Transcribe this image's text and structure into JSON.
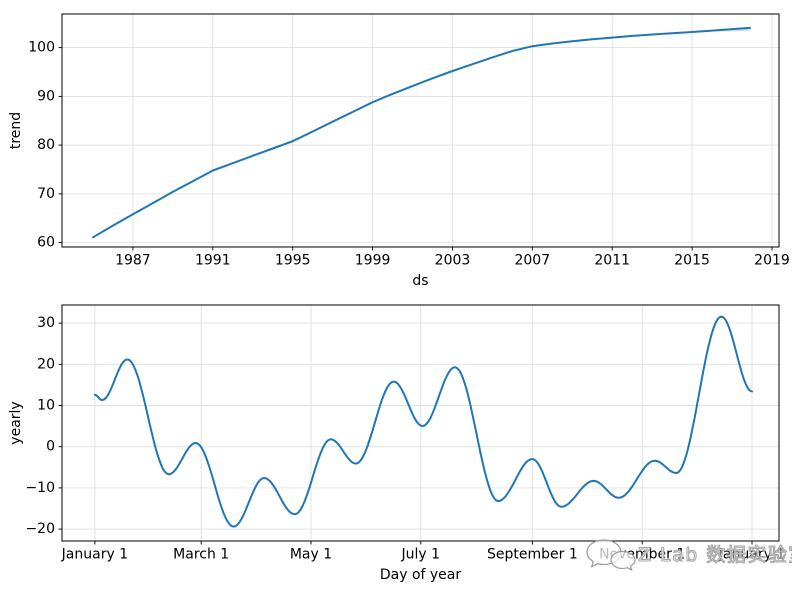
{
  "figure": {
    "background": "#ffffff",
    "watermark": {
      "text": "Z Lab 数据实验室",
      "icon": "chat-bubbles-icon"
    }
  },
  "chart_data": [
    {
      "type": "line",
      "title": "",
      "xlabel": "ds",
      "ylabel": "trend",
      "grid": true,
      "grid_color": "#e0e0e0",
      "legend": "none",
      "line_color": "#1f77b4",
      "line_width": 2,
      "smooth": false,
      "xlim": [
        1983.45,
        2019.35
      ],
      "ylim": [
        59.1,
        106.9
      ],
      "xticks": {
        "values": [
          1987,
          1991,
          1995,
          1999,
          2003,
          2007,
          2011,
          2015,
          2019
        ],
        "labels": [
          "1987",
          "1991",
          "1995",
          "1999",
          "2003",
          "2007",
          "2011",
          "2015",
          "2019"
        ]
      },
      "yticks": {
        "values": [
          60,
          70,
          80,
          90,
          100
        ],
        "labels": [
          "60",
          "70",
          "80",
          "90",
          "100"
        ]
      },
      "uncertainty_band": {
        "color": "rgba(31,119,180,0.22)",
        "points": [
          [
            2015.5,
            103.3
          ],
          [
            2017.9,
            104.3
          ],
          [
            2017.9,
            103.35
          ]
        ]
      },
      "series": [
        {
          "name": "trend",
          "points": [
            [
              1985.0,
              61.1
            ],
            [
              1986,
              63.5
            ],
            [
              1987,
              65.8
            ],
            [
              1988,
              68.1
            ],
            [
              1989,
              70.4
            ],
            [
              1990,
              72.6
            ],
            [
              1991,
              74.8
            ],
            [
              1992,
              76.3
            ],
            [
              1993,
              77.8
            ],
            [
              1994,
              79.3
            ],
            [
              1995,
              80.8
            ],
            [
              1996,
              82.8
            ],
            [
              1997,
              84.8
            ],
            [
              1998,
              86.8
            ],
            [
              1999,
              88.8
            ],
            [
              2000,
              90.5
            ],
            [
              2001,
              92.1
            ],
            [
              2002,
              93.7
            ],
            [
              2003,
              95.2
            ],
            [
              2004,
              96.6
            ],
            [
              2005,
              98.0
            ],
            [
              2006,
              99.3
            ],
            [
              2007,
              100.3
            ],
            [
              2008,
              100.85
            ],
            [
              2009,
              101.3
            ],
            [
              2010,
              101.7
            ],
            [
              2011,
              102.05
            ],
            [
              2012,
              102.4
            ],
            [
              2013,
              102.7
            ],
            [
              2014,
              102.95
            ],
            [
              2015,
              103.2
            ],
            [
              2016,
              103.5
            ],
            [
              2017,
              103.8
            ],
            [
              2017.9,
              104.05
            ]
          ]
        }
      ]
    },
    {
      "type": "line",
      "title": "",
      "xlabel": "Day of year",
      "ylabel": "yearly",
      "grid": true,
      "grid_color": "#e0e0e0",
      "legend": "none",
      "line_color": "#1f77b4",
      "line_width": 2,
      "smooth": true,
      "xlim": [
        -18.3,
        380.0
      ],
      "ylim": [
        -22.9,
        34.4
      ],
      "xticks": {
        "values": [
          0,
          59,
          120,
          181,
          243,
          304,
          365
        ],
        "labels": [
          "January 1",
          "March 1",
          "May 1",
          "July 1",
          "September 1",
          "November 1",
          "January 1"
        ]
      },
      "yticks": {
        "values": [
          -20,
          -10,
          0,
          10,
          20,
          30
        ],
        "labels": [
          "−20",
          "−10",
          "0",
          "10",
          "20",
          "30"
        ]
      },
      "series": [
        {
          "name": "yearly",
          "points": [
            [
              0,
              12.6
            ],
            [
              4,
              11.3
            ],
            [
              18,
              21.2
            ],
            [
              41,
              -6.7
            ],
            [
              56,
              0.9
            ],
            [
              77,
              -19.4
            ],
            [
              94,
              -7.6
            ],
            [
              111,
              -16.4
            ],
            [
              131,
              1.8
            ],
            [
              145,
              -4.1
            ],
            [
              166,
              15.8
            ],
            [
              182,
              5.0
            ],
            [
              200,
              19.3
            ],
            [
              224,
              -13.2
            ],
            [
              243,
              -3.0
            ],
            [
              259,
              -14.6
            ],
            [
              277,
              -8.3
            ],
            [
              291,
              -12.4
            ],
            [
              311,
              -3.4
            ],
            [
              323,
              -6.4
            ],
            [
              348,
              31.6
            ],
            [
              365,
              13.4
            ]
          ]
        }
      ]
    }
  ]
}
